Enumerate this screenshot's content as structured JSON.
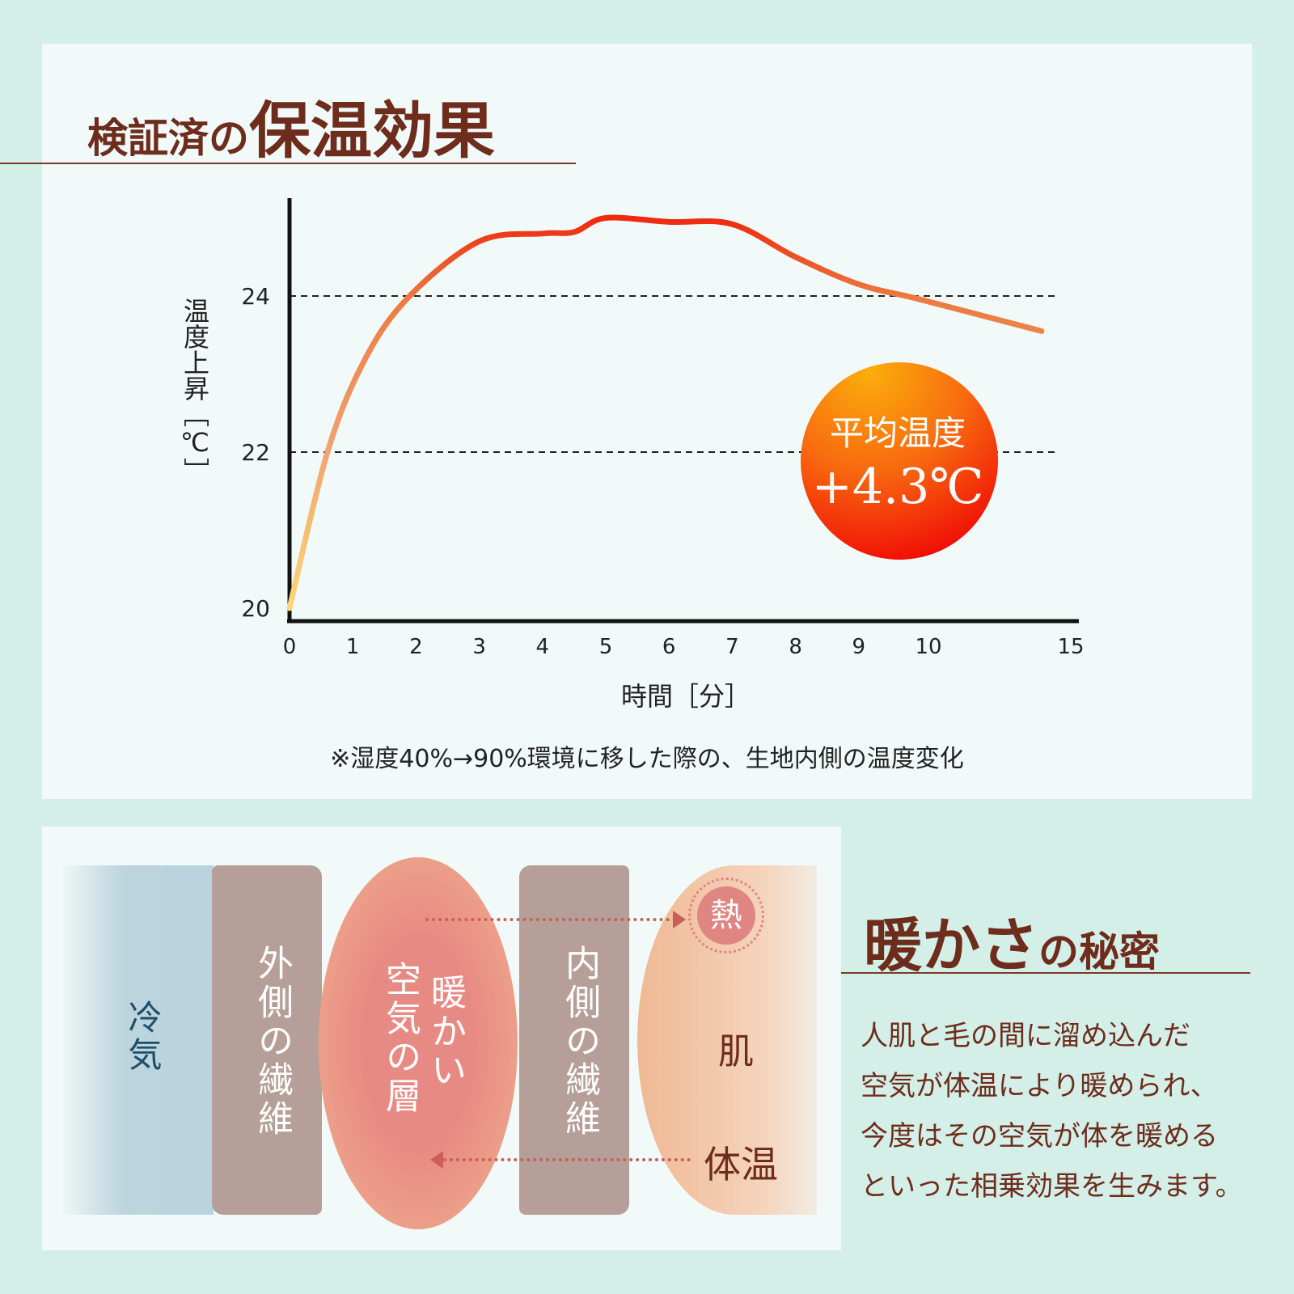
{
  "header": {
    "title_small": "検証済の",
    "title_large": "保温効果"
  },
  "chart_data": {
    "type": "line",
    "title": "検証済の保温効果",
    "xlabel": "時間［分］",
    "ylabel": "温度上昇［℃］",
    "x_ticks": [
      0,
      1,
      2,
      3,
      4,
      5,
      6,
      7,
      8,
      9,
      10,
      15
    ],
    "y_ticks": [
      20,
      22,
      24
    ],
    "ylim": [
      20,
      25.5
    ],
    "xlim": [
      0,
      15
    ],
    "grid": "dashed horizontal at 22 and 24",
    "series": [
      {
        "name": "生地内側の温度",
        "x": [
          0,
          0.6,
          1.2,
          1.9,
          3,
          4,
          4.5,
          5,
          6,
          7,
          8,
          9,
          10,
          14.2
        ],
        "y": [
          20,
          22,
          23.2,
          24,
          24.7,
          24.8,
          24.82,
          25.0,
          24.95,
          24.92,
          24.5,
          24.15,
          23.95,
          23.55
        ]
      }
    ],
    "annotation": {
      "label": "平均温度",
      "value": "+4.3℃"
    },
    "note": "※湿度40%→90%環境に移した際の、生地内側の温度変化",
    "colors": {
      "line_low": "#fbd97a",
      "line_high": "#ee2a10",
      "axis": "#111111"
    }
  },
  "diagram": {
    "cold_air": "冷気",
    "outer_fiber": "外側の繊維",
    "warm_air_1": "暖かい",
    "warm_air_2": "空気の層",
    "inner_fiber": "内側の繊維",
    "heat": "熱",
    "skin": "肌",
    "body_temp": "体温"
  },
  "secret": {
    "title_large": "暖かさ",
    "title_small": "の秘密",
    "lines": [
      "人肌と毛の間に溜め込んだ",
      "空気が体温により暖められ、",
      "今度はその空気が体を暖める",
      "といった相乗効果を生みます。"
    ]
  }
}
